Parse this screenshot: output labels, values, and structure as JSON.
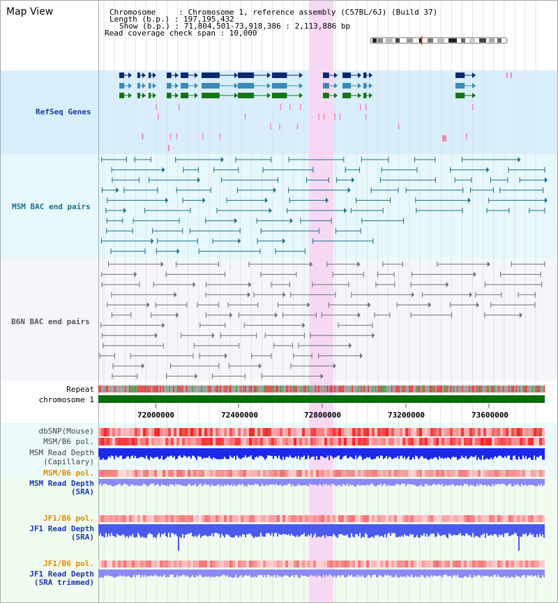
{
  "page": {
    "title": "Map View"
  },
  "header": {
    "chromosome": "Chromosome     : Chromosome 1, reference assembly (C57BL/6J) (Build 37)",
    "length": "Length (b.p.) : 197,195,432",
    "show": "Show (b.p.) : 71,804,501-73,918,386 : 2,113,886 bp",
    "coverage": "Read coverage check span : 10,000"
  },
  "tracks": {
    "refseq": "RefSeq Genes",
    "msm_bac": "MSM BAC end pairs",
    "b6n_bac": "B6N BAC end pairs",
    "repeat": "Repeat",
    "chromosome": "chromosome 1",
    "dbsnp": "dbSNP(Mouse)",
    "msm_b6_pol_cap": "MSM/B6 pol.",
    "msm_read_depth_cap": "MSM Read Depth",
    "msm_read_depth_cap_sub": "(Capillary)",
    "msm_b6_pol_sra": "MSM/B6 pol.",
    "msm_read_depth_sra": "MSM Read Depth",
    "msm_read_depth_sra_sub": "(SRA)",
    "jf1_b6_pol_sra": "JF1/B6 pol.",
    "jf1_read_depth_sra": "JF1 Read Depth",
    "jf1_read_depth_sra_sub": "(SRA)",
    "jf1_b6_pol_trim": "JF1/B6 pol.",
    "jf1_read_depth_trim": "JF1 Read Depth",
    "jf1_read_depth_trim_sub": "(SRA trimmed)"
  },
  "axis": {
    "ticks": [
      "72000000",
      "72400000",
      "72800000",
      "73200000",
      "73600000"
    ]
  },
  "colors": {
    "refseq_bg": "#d8eefa",
    "msm_bg": "#e6f8fb",
    "b6n_bg": "#f4f6fa",
    "highlight": "#f8d8f4",
    "chrom_green": "#0a6e0a",
    "gene_dark": "#0a2a6a",
    "gene_mid": "#3a8ab8",
    "gene_green": "#157515",
    "msm_line": "#1a6e8a",
    "b6n_line": "#707070",
    "blue_label": "#1a3aa8",
    "orange_label": "#e08a00"
  },
  "chromosome_ideogram": {
    "highlight_position": 0.37
  }
}
